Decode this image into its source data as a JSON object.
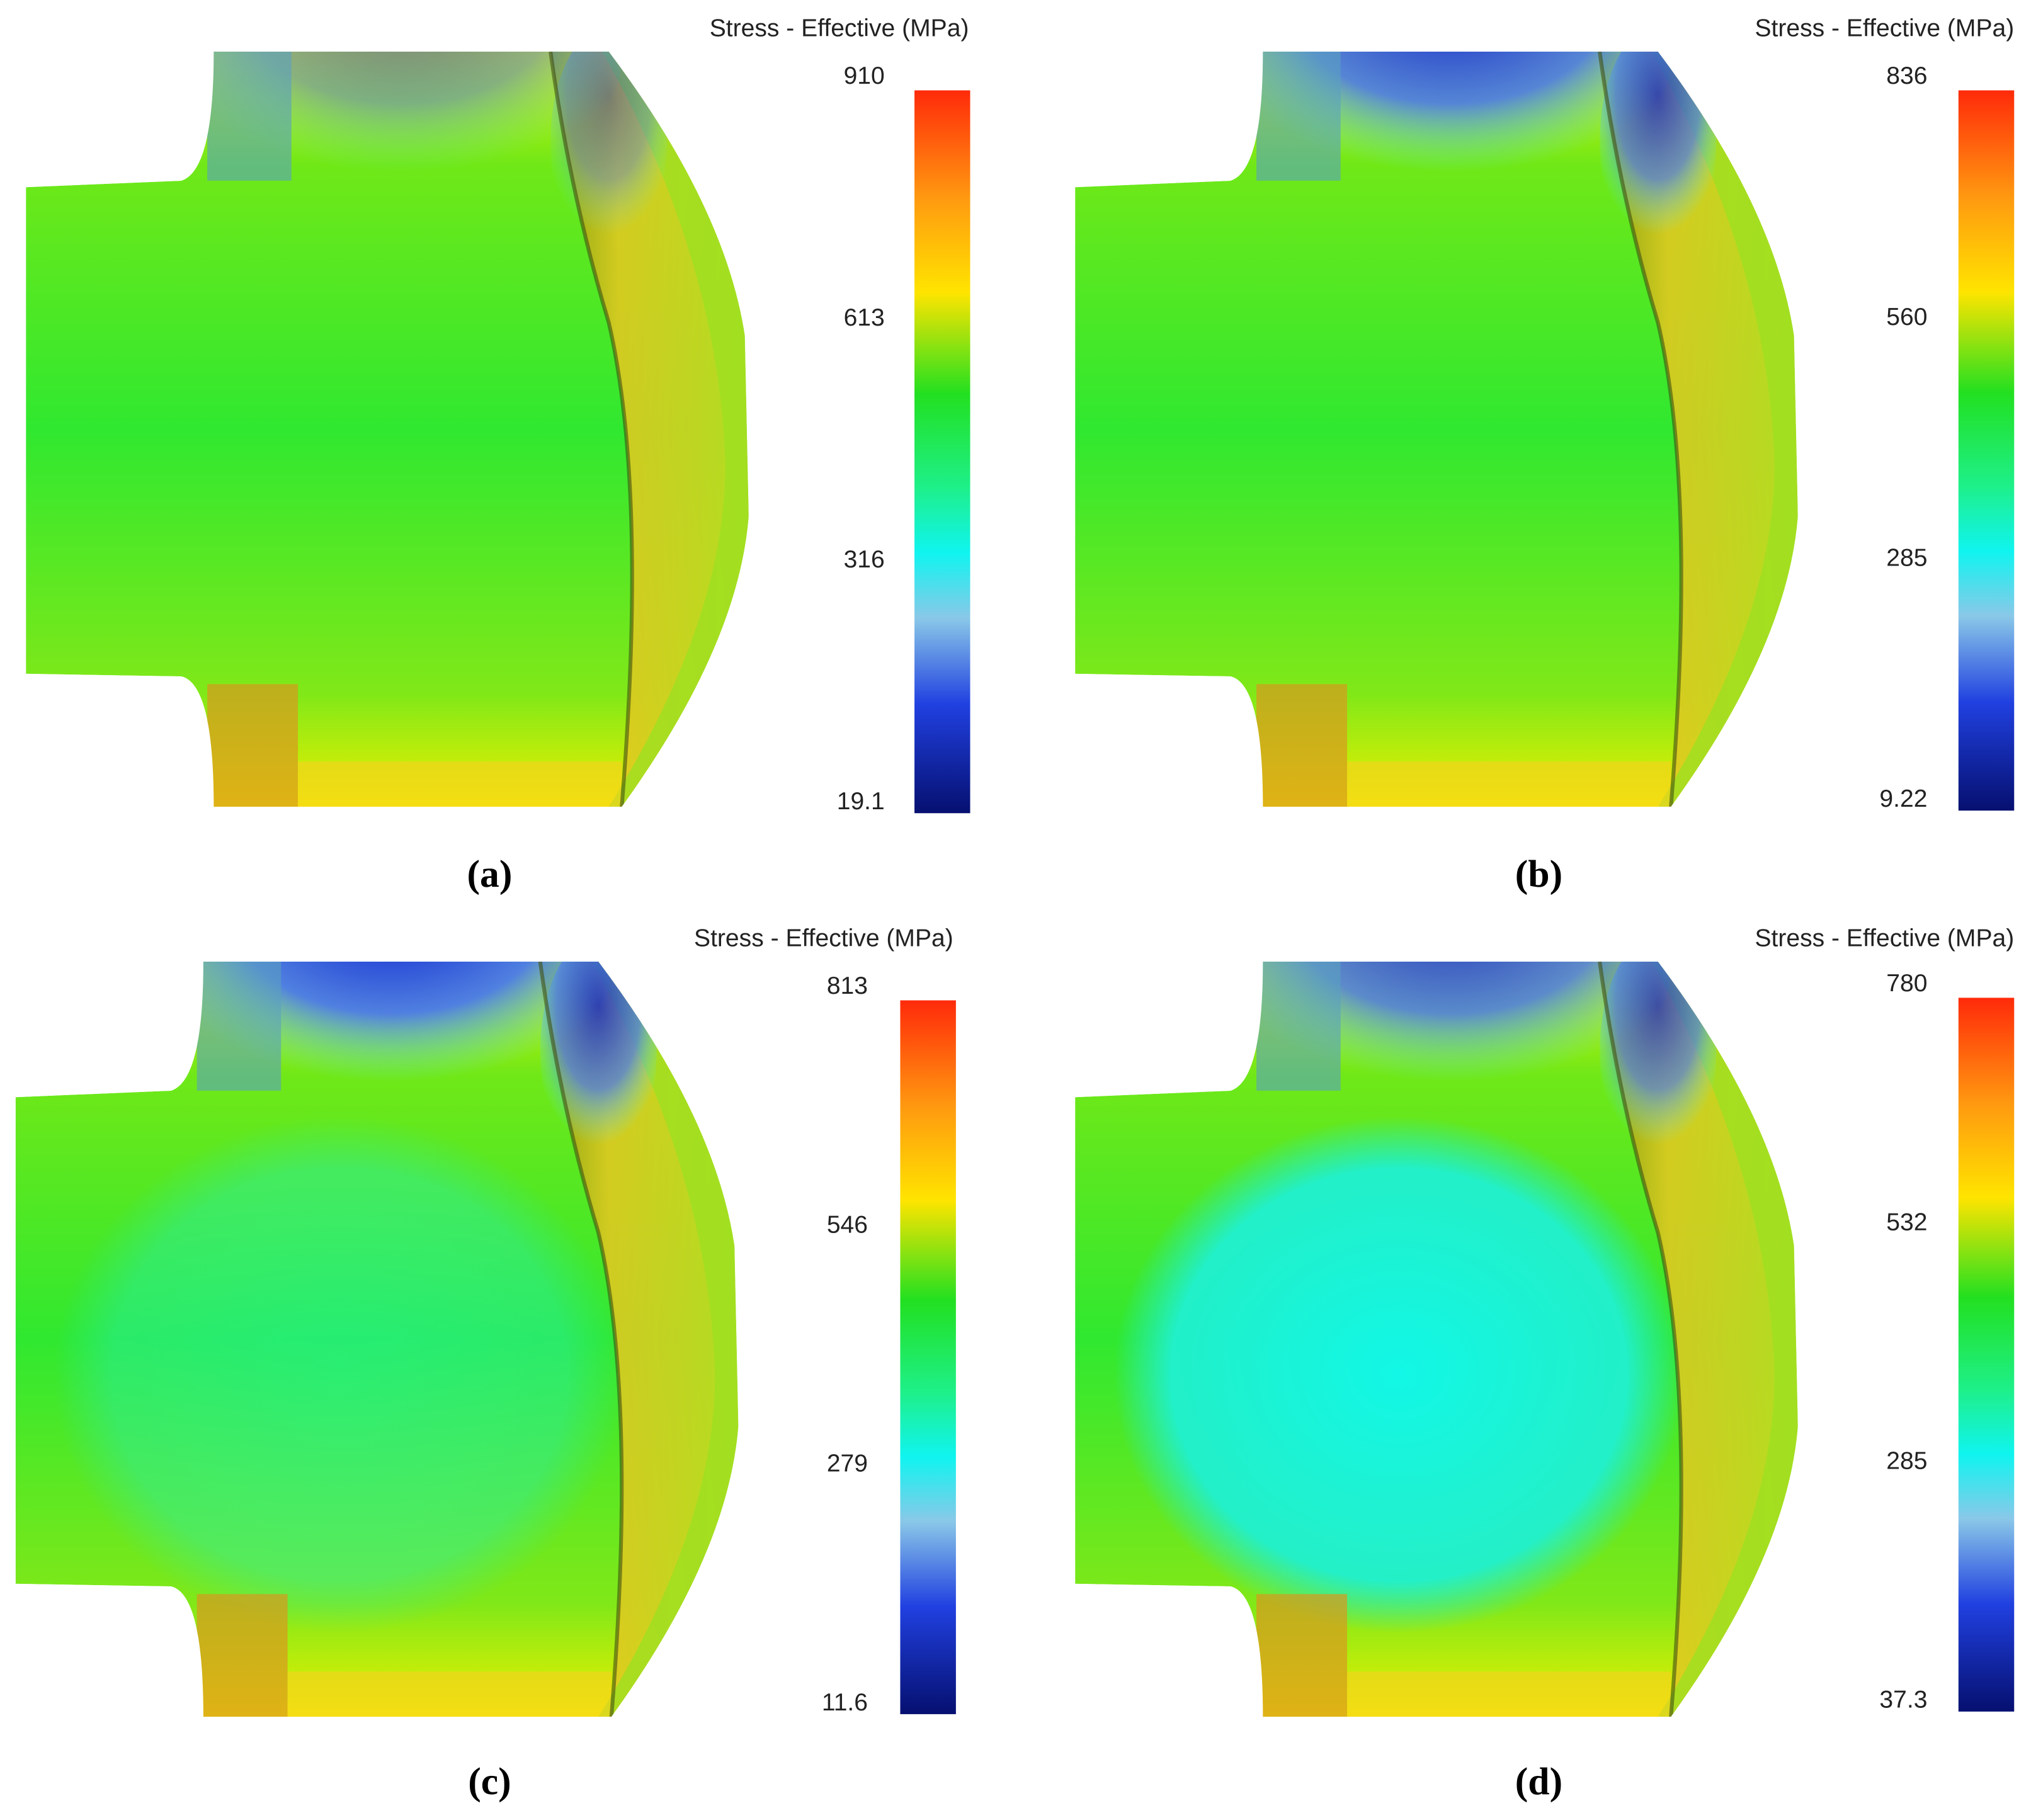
{
  "panels": [
    {
      "title": "Stress - Effective (MPa)",
      "ticks": [
        "910",
        "613",
        "316",
        "19.1"
      ],
      "caption": "(a)"
    },
    {
      "title": "Stress - Effective (MPa)",
      "ticks": [
        "836",
        "560",
        "285",
        "9.22"
      ],
      "caption": "(b)"
    },
    {
      "title": "Stress - Effective (MPa)",
      "ticks": [
        "813",
        "546",
        "279",
        "11.6"
      ],
      "caption": "(c)"
    },
    {
      "title": "Stress - Effective (MPa)",
      "ticks": [
        "780",
        "532",
        "285",
        "37.3"
      ],
      "caption": "(d)"
    }
  ]
}
